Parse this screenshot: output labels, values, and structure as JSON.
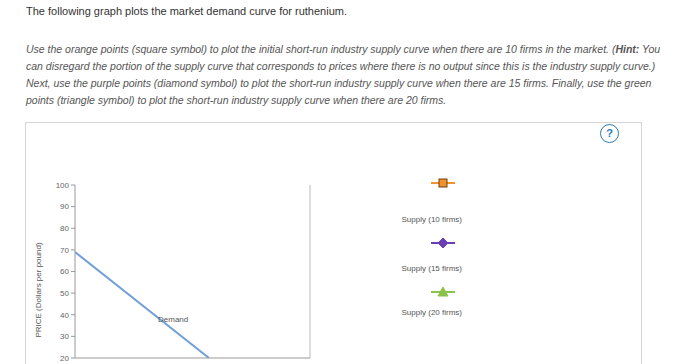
{
  "header": {
    "title": "The following graph plots the market demand curve for ruthenium.",
    "instructions_before_hint": "Use the orange points (square symbol) to plot the initial short-run industry supply curve when there are 10 firms in the market. (",
    "hint_label": "Hint:",
    "instructions_after_hint": " You can disregard the portion of the supply curve that corresponds to prices where there is no output since this is the industry supply curve.) Next, use the purple points (diamond symbol) to plot the short-run industry supply curve when there are 15 firms. Finally, use the green points (triangle symbol) to plot the short-run industry supply curve when there are 20 firms.",
    "help_icon": "?"
  },
  "chart_data": {
    "type": "line",
    "y_label": "PRICE (Dollars per pound)",
    "x": [
      0,
      57
    ],
    "series": [
      {
        "name": "Demand",
        "color": "#6f9fd8",
        "values": [
          69,
          20
        ]
      },
      {
        "name": "Supply (10 firms)",
        "type": "scatter",
        "marker": "square",
        "color": "#f0922e",
        "values": [
          null,
          null
        ]
      },
      {
        "name": "Supply (15 firms)",
        "type": "scatter",
        "marker": "diamond",
        "color": "#6a3fb5",
        "values": [
          null,
          null
        ]
      },
      {
        "name": "Supply (20 firms)",
        "type": "scatter",
        "marker": "triangle",
        "color": "#8bc34a",
        "values": [
          null,
          null
        ]
      }
    ],
    "xlim": [
      0,
      100
    ],
    "ylim": [
      20,
      100
    ],
    "yticks": [
      20,
      30,
      40,
      50,
      60,
      70,
      80,
      90,
      100
    ],
    "tick_labels": "y",
    "grid": false
  }
}
